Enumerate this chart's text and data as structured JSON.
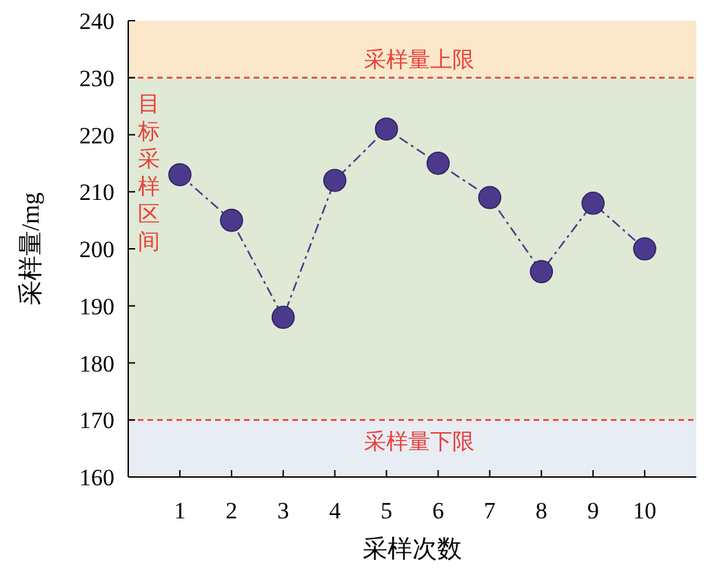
{
  "chart_data": {
    "type": "line",
    "xlabel": "采样次数",
    "ylabel": "采样量/mg",
    "categories": [
      "1",
      "2",
      "3",
      "4",
      "5",
      "6",
      "7",
      "8",
      "9",
      "10"
    ],
    "series": [
      {
        "color": "#4b3a8c",
        "values": [
          213,
          205,
          188,
          212,
          221,
          215,
          209,
          196,
          208,
          200
        ]
      }
    ],
    "ylim": [
      160,
      240
    ],
    "yticks": [
      160,
      170,
      180,
      190,
      200,
      210,
      220,
      230,
      240
    ],
    "marker": "circle",
    "line_style": "dashed",
    "grid": false,
    "bands": [
      {
        "axis": "y",
        "from": 160,
        "to": 170,
        "color": "#e8ecf3"
      },
      {
        "axis": "y",
        "from": 170,
        "to": 230,
        "color": "#dfe9d5",
        "label": "目标采样区间"
      },
      {
        "axis": "y",
        "from": 230,
        "to": 240,
        "color": "#fbe8cb"
      }
    ],
    "ref_lines": [
      {
        "axis": "y",
        "value": 230,
        "label": "采样量上限",
        "color": "#e8403a",
        "line_style": "dashed"
      },
      {
        "axis": "y",
        "value": 170,
        "label": "采样量下限",
        "color": "#e8403a",
        "line_style": "dashed"
      }
    ]
  }
}
